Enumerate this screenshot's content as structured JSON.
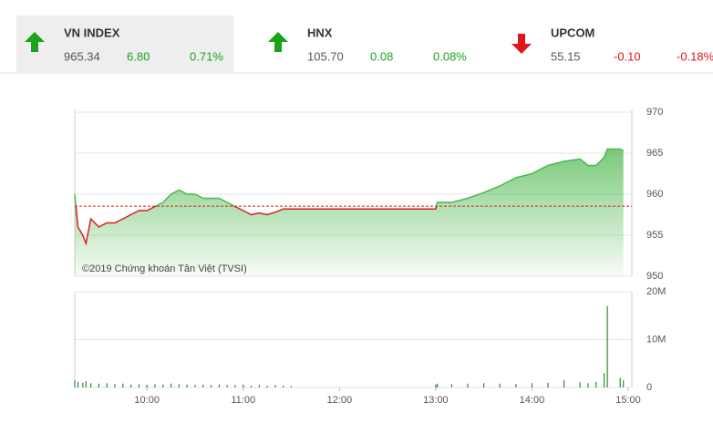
{
  "indices": [
    {
      "name": "VN INDEX",
      "value": "965.34",
      "change": "6.80",
      "percent": "0.71%",
      "direction": "up",
      "color": "#1aa31a",
      "selected": true
    },
    {
      "name": "HNX",
      "value": "105.70",
      "change": "0.08",
      "percent": "0.08%",
      "direction": "up",
      "color": "#1aa31a",
      "selected": false
    },
    {
      "name": "UPCOM",
      "value": "55.15",
      "change": "-0.10",
      "percent": "-0.18%",
      "direction": "down",
      "color": "#e0161b",
      "selected": false
    }
  ],
  "chart_data": {
    "type": "line",
    "note": "©2019 Chứng khoán Tân Việt (TVSI)",
    "x": [
      "09:15",
      "09:17",
      "09:20",
      "09:22",
      "09:25",
      "09:30",
      "09:35",
      "09:40",
      "09:45",
      "09:50",
      "09:55",
      "10:00",
      "10:05",
      "10:10",
      "10:15",
      "10:20",
      "10:25",
      "10:30",
      "10:35",
      "10:40",
      "10:45",
      "10:50",
      "10:55",
      "11:00",
      "11:05",
      "11:10",
      "11:15",
      "11:20",
      "11:25",
      "11:30",
      "13:00",
      "13:01",
      "13:10",
      "13:20",
      "13:30",
      "13:40",
      "13:50",
      "14:00",
      "14:10",
      "14:20",
      "14:30",
      "14:35",
      "14:40",
      "14:45",
      "14:47",
      "14:55",
      "14:57"
    ],
    "values": [
      960,
      956,
      955,
      954,
      957,
      956,
      956.5,
      956.5,
      957,
      957.5,
      958,
      958,
      958.5,
      959,
      960,
      960.5,
      960,
      960,
      959.5,
      959.5,
      959.5,
      959,
      958.5,
      958,
      957.5,
      957.7,
      957.5,
      957.8,
      958.2,
      958.2,
      958.2,
      959,
      959,
      959.5,
      960.2,
      961,
      962,
      962.5,
      963.5,
      964,
      964.3,
      963.5,
      963.5,
      964.5,
      965.5,
      965.5,
      965.3
    ],
    "reference": 958.54,
    "up_color": "#4cb84c",
    "down_color": "#d42020",
    "volume_color": "#2e8b2e",
    "xlim": [
      "09:15",
      "15:00"
    ],
    "xticks": [
      "10:00",
      "11:00",
      "12:00",
      "13:00",
      "14:00",
      "15:00"
    ],
    "ylim": [
      950,
      970
    ],
    "yticks": [
      950,
      955,
      960,
      965,
      970
    ],
    "volume": [
      1500000,
      1200000,
      1000000,
      1300000,
      900000,
      800000,
      900000,
      700000,
      800000,
      600000,
      700000,
      600000,
      700000,
      600000,
      800000,
      700000,
      600000,
      500000,
      600000,
      500000,
      600000,
      500000,
      500000,
      600000,
      400000,
      500000,
      400000,
      500000,
      400000,
      300000,
      600000,
      800000,
      700000,
      800000,
      900000,
      800000,
      700000,
      900000,
      1000000,
      1500000,
      1100000,
      900000,
      1200000,
      3000000,
      17000000,
      2000000,
      1500000
    ],
    "vlim": [
      0,
      20000000
    ],
    "vticks": [
      0,
      {
        "value": 10000000,
        "label": "10M"
      },
      {
        "value": 20000000,
        "label": "20M"
      }
    ],
    "grid": true
  }
}
